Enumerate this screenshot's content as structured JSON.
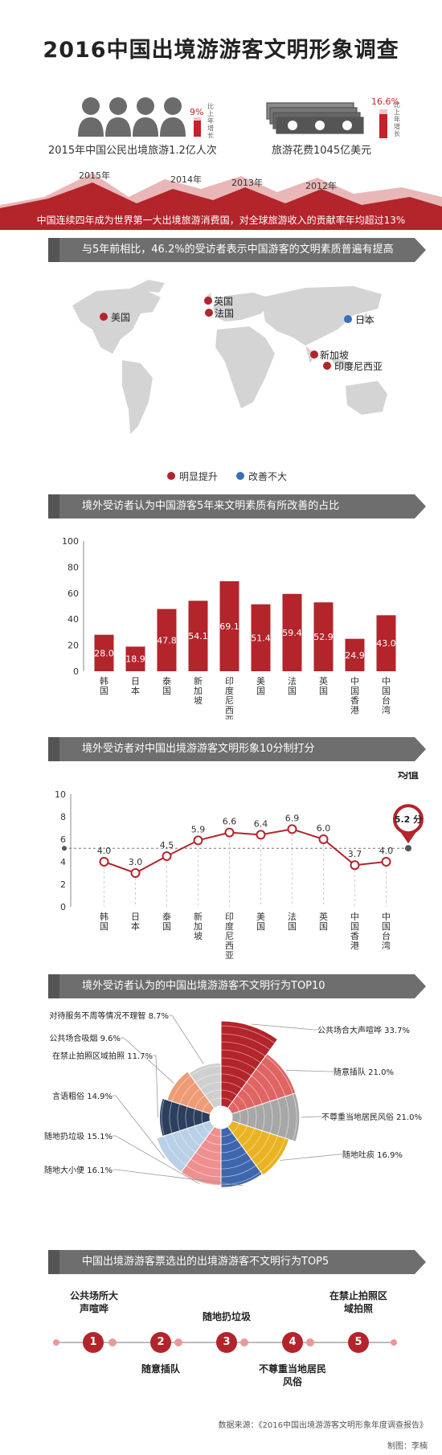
{
  "title": "2016中国出境游游客文明形象调查",
  "stats": {
    "travelers": {
      "text": "2015年中国公民出境旅游1.2亿人次",
      "pct": "9%",
      "note": "比上年增长"
    },
    "spending": {
      "text": "旅游花费1045亿美元",
      "pct": "16.6%",
      "note": "比上年增长"
    }
  },
  "mountain_years": [
    "2015年",
    "2014年",
    "2013年",
    "2012年"
  ],
  "band_text": "中国连续四年成为世界第一大出境旅游消费国，对全球旅游收入的贡献率年均超过13%",
  "sections": {
    "map": "与5年前相比，46.2%的受访者表示中国游客的文明素质普遍有提高",
    "bar": "境外受访者认为中国游客5年来文明素质有所改善的占比",
    "line": "境外受访者对中国出境游游客文明形象10分制打分",
    "pie": "境外受访者认为的中国出境游游客不文明行为TOP10",
    "top5": "中国出境游游客票选出的出境游游客不文明行为TOP5"
  },
  "map": {
    "labels": {
      "us": "美国",
      "uk": "英国",
      "fr": "法国",
      "jp": "日本",
      "sg": "新加坡",
      "id": "印度尼西亚"
    },
    "legend": {
      "improved": "明显提升",
      "unchanged": "改善不大"
    },
    "colors": {
      "improved": "#b3242b",
      "unchanged": "#3a6fb6",
      "land": "#d4d4d4"
    }
  },
  "chart_data": [
    {
      "type": "bar",
      "title": "境外受访者认为中国游客5年来文明素质有所改善的占比",
      "categories": [
        "韩国",
        "日本",
        "泰国",
        "新加坡",
        "印度尼西亚",
        "美国",
        "法国",
        "英国",
        "中国香港",
        "中国台湾"
      ],
      "values": [
        28.0,
        18.9,
        47.8,
        54.1,
        69.1,
        51.4,
        59.4,
        52.9,
        24.9,
        43.0
      ],
      "value_labels": [
        "28.0",
        "18.9",
        "47.8",
        "54.1",
        "69.1",
        "51.4",
        "59.4",
        "52.9",
        "24.9",
        "43.0"
      ],
      "ylim": [
        0,
        100
      ],
      "yticks": [
        "0",
        "20",
        "40",
        "60",
        "80",
        "100"
      ],
      "color": "#b3242b"
    },
    {
      "type": "line",
      "title": "境外受访者对中国出境游游客文明形象10分制打分",
      "categories": [
        "韩国",
        "日本",
        "泰国",
        "新加坡",
        "印度尼西亚",
        "美国",
        "法国",
        "英国",
        "中国香港",
        "中国台湾"
      ],
      "values": [
        4.0,
        3.0,
        4.5,
        5.9,
        6.6,
        6.4,
        6.9,
        6.0,
        3.7,
        4.0
      ],
      "value_labels": [
        "4.0",
        "3.0",
        "4.5",
        "5.9",
        "6.6",
        "6.4",
        "6.9",
        "6.0",
        "3.7",
        "4.0"
      ],
      "ylim": [
        0,
        10
      ],
      "yticks": [
        "0",
        "2",
        "4",
        "6",
        "8",
        "10"
      ],
      "mean": {
        "label": "均值",
        "value": 5.2,
        "text": "5.2 分"
      },
      "color": "#b3242b"
    },
    {
      "type": "pie",
      "title": "境外受访者认为的中国出境游游客不文明行为TOP10",
      "labels": [
        "公共场合大声喧哗",
        "随意插队",
        "不尊重当地居民风俗",
        "随地吐痰",
        "随地大小便",
        "随地扔垃圾",
        "言语粗俗",
        "在禁止拍照区域拍照",
        "公共场合吸烟",
        "对待服务不周等情况不理智"
      ],
      "values": [
        33.7,
        21.0,
        21.0,
        16.9,
        16.1,
        15.1,
        14.9,
        11.7,
        9.6,
        8.7
      ],
      "value_labels": [
        "33.7%",
        "21.0%",
        "21.0%",
        "16.9%",
        "16.1%",
        "15.1%",
        "14.9%",
        "11.7%",
        "9.6%",
        "8.7%"
      ],
      "colors": [
        "#b3242b",
        "#e06464",
        "#a7a7a7",
        "#e9b323",
        "#3e66ad",
        "#ef8f8f",
        "#b9d0e6",
        "#2b3f5e",
        "#ee9b76",
        "#cfcfcf"
      ]
    }
  ],
  "top5": {
    "items": [
      "公共场所大声喧哗",
      "随意插队",
      "随地扔垃圾",
      "不尊重当地居民风俗",
      "在禁止拍照区域拍照"
    ],
    "numbers": [
      "1",
      "2",
      "3",
      "4",
      "5"
    ]
  },
  "footer": {
    "source": "数据来源：《2016中国出境游游客文明形象年度调查报告》",
    "credit": "制图：李楠"
  }
}
